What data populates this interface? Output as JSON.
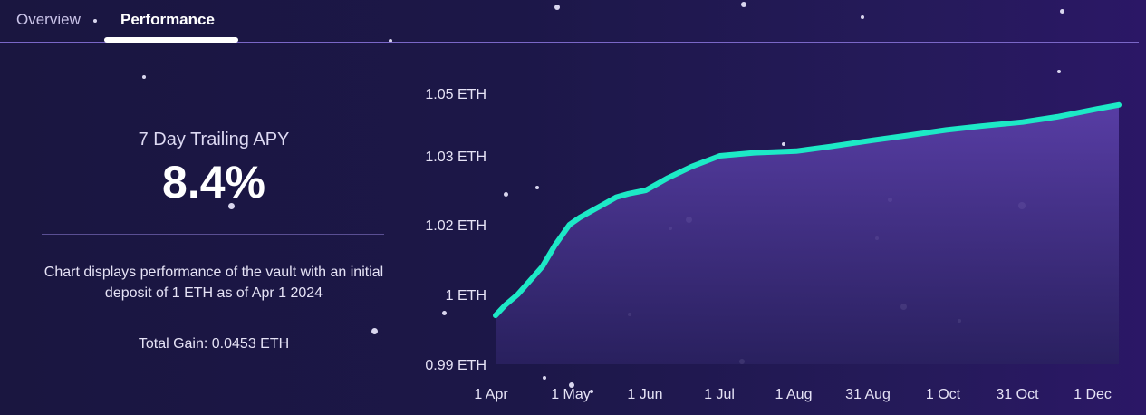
{
  "tabs": [
    {
      "label": "Overview",
      "active": false
    },
    {
      "label": "Performance",
      "active": true
    }
  ],
  "stats": {
    "apy_label": "7 Day Trailing APY",
    "apy_value": "8.4%",
    "description": "Chart displays performance of the vault with an initial deposit of 1 ETH as of Apr 1 2024",
    "total_gain": "Total Gain: 0.0453 ETH"
  },
  "colors": {
    "line": "#1de9c6",
    "area_top": "#5a3fa8",
    "area_bottom": "#2a2160",
    "accent_border": "#7a67c7"
  },
  "chart_data": {
    "type": "area",
    "title": "",
    "xlabel": "",
    "ylabel": "",
    "y_ticks": [
      {
        "value": 0.99,
        "label": "0.99 ETH"
      },
      {
        "value": 1.0,
        "label": "1 ETH"
      },
      {
        "value": 1.02,
        "label": "1.02 ETH"
      },
      {
        "value": 1.03,
        "label": "1.03 ETH"
      },
      {
        "value": 1.05,
        "label": "1.05 ETH"
      }
    ],
    "x_ticks": [
      "1 Apr",
      "1 May",
      "1 Jun",
      "1 Jul",
      "1 Aug",
      "31 Aug",
      "1 Oct",
      "31 Oct",
      "1 Dec"
    ],
    "series": [
      {
        "x": [
          "2024-04-01",
          "2024-04-05",
          "2024-04-10",
          "2024-04-15",
          "2024-04-20",
          "2024-04-25",
          "2024-05-01",
          "2024-05-05",
          "2024-05-10",
          "2024-05-15",
          "2024-05-20",
          "2024-05-25",
          "2024-06-01",
          "2024-06-10",
          "2024-06-20",
          "2024-07-01",
          "2024-07-15",
          "2024-08-01",
          "2024-08-15",
          "2024-09-01",
          "2024-09-15",
          "2024-10-01",
          "2024-10-15",
          "2024-11-01",
          "2024-11-15",
          "2024-12-01",
          "2024-12-10"
        ],
        "values": [
          0.997,
          0.9985,
          1.0,
          1.004,
          1.008,
          1.014,
          1.02,
          1.021,
          1.022,
          1.023,
          1.024,
          1.0245,
          1.025,
          1.0268,
          1.0285,
          1.03,
          1.031,
          1.0315,
          1.033,
          1.035,
          1.0365,
          1.0383,
          1.0395,
          1.0408,
          1.0425,
          1.045,
          1.0463
        ]
      }
    ]
  }
}
